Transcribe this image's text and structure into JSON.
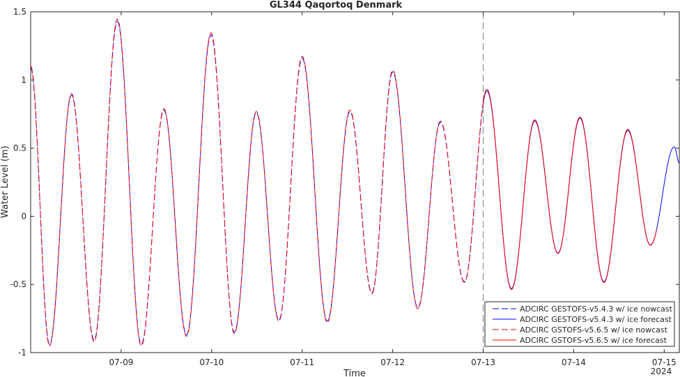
{
  "chart_data": {
    "type": "line",
    "title": "GL344 Qaqortoq Denmark",
    "xlabel": "Time",
    "ylabel": "Water Level (m)",
    "ylim": [
      -1,
      1.5
    ],
    "xlim": [
      "2024-07-08 00:00",
      "2024-07-15 04:00"
    ],
    "x_ticks": [
      "07-09",
      "07-10",
      "07-11",
      "07-12",
      "07-13",
      "07-14",
      "07-15"
    ],
    "x_tick_dates": [
      "2024-07-09",
      "2024-07-10",
      "2024-07-11",
      "2024-07-12",
      "2024-07-13",
      "2024-07-14",
      "2024-07-15"
    ],
    "x_year_label": "2024",
    "y_ticks": [
      "-1",
      "-0.5",
      "0",
      "0.5",
      "1",
      "1.5"
    ],
    "y_tick_values": [
      -1,
      -0.5,
      0,
      0.5,
      1,
      1.5
    ],
    "nowcast_forecast_boundary": "2024-07-13 00:00",
    "grid": false,
    "legend_position": "bottom-right",
    "colors": {
      "blue": "#0000ff",
      "red": "#ff0000",
      "boundary": "#808080",
      "axis": "#262626"
    },
    "extrema": [
      {
        "t": "2024-07-08 00:00",
        "v": 1.09
      },
      {
        "t": "2024-07-08 05:00",
        "v": -0.94
      },
      {
        "t": "2024-07-08 10:50",
        "v": 0.89
      },
      {
        "t": "2024-07-08 16:50",
        "v": -0.91
      },
      {
        "t": "2024-07-08 23:00",
        "v": 1.43
      },
      {
        "t": "2024-07-09 05:20",
        "v": -0.94
      },
      {
        "t": "2024-07-09 11:20",
        "v": 0.78
      },
      {
        "t": "2024-07-09 17:20",
        "v": -0.87
      },
      {
        "t": "2024-07-09 23:50",
        "v": 1.33
      },
      {
        "t": "2024-07-10 06:00",
        "v": -0.85
      },
      {
        "t": "2024-07-10 11:50",
        "v": 0.76
      },
      {
        "t": "2024-07-10 17:50",
        "v": -0.76
      },
      {
        "t": "2024-07-11 00:00",
        "v": 1.16
      },
      {
        "t": "2024-07-11 06:40",
        "v": -0.77
      },
      {
        "t": "2024-07-11 12:40",
        "v": 0.77
      },
      {
        "t": "2024-07-11 18:30",
        "v": -0.56
      },
      {
        "t": "2024-07-12 00:00",
        "v": 1.06
      },
      {
        "t": "2024-07-12 06:40",
        "v": -0.67
      },
      {
        "t": "2024-07-12 12:40",
        "v": 0.69
      },
      {
        "t": "2024-07-12 19:00",
        "v": -0.48
      },
      {
        "t": "2024-07-13 01:00",
        "v": 0.92
      },
      {
        "t": "2024-07-13 07:30",
        "v": -0.53
      },
      {
        "t": "2024-07-13 13:40",
        "v": 0.7
      },
      {
        "t": "2024-07-13 19:50",
        "v": -0.27
      },
      {
        "t": "2024-07-14 01:40",
        "v": 0.72
      },
      {
        "t": "2024-07-14 08:00",
        "v": -0.48
      },
      {
        "t": "2024-07-14 14:20",
        "v": 0.63
      },
      {
        "t": "2024-07-14 20:20",
        "v": -0.21
      },
      {
        "t": "2024-07-15 02:40",
        "v": 0.51
      },
      {
        "t": "2024-07-15 04:00",
        "v": 0.39
      }
    ],
    "series": [
      {
        "name": "ADCIRC GESTOFS-v5.4.3 w/ ice nowcast",
        "color": "#0000ff",
        "style": "dashed",
        "t_start": "2024-07-08 00:00",
        "t_end": "2024-07-13 00:00",
        "offset": 0.0
      },
      {
        "name": "ADCIRC GESTOFS-v5.4.3 w/ ice forecast",
        "color": "#0000ff",
        "style": "solid",
        "t_start": "2024-07-13 00:00",
        "t_end": "2024-07-15 04:00",
        "offset": 0.0
      },
      {
        "name": "ADCIRC GSTOFS-v5.6.5 w/ ice nowcast",
        "color": "#ff0000",
        "style": "dashed",
        "t_start": "2024-07-08 00:00",
        "t_end": "2024-07-13 00:00",
        "offset": 0.012
      },
      {
        "name": "ADCIRC GSTOFS-v5.6.5 w/ ice forecast",
        "color": "#ff0000",
        "style": "solid",
        "t_start": "2024-07-13 00:00",
        "t_end": "2024-07-14 22:00",
        "offset": 0.012
      }
    ]
  }
}
